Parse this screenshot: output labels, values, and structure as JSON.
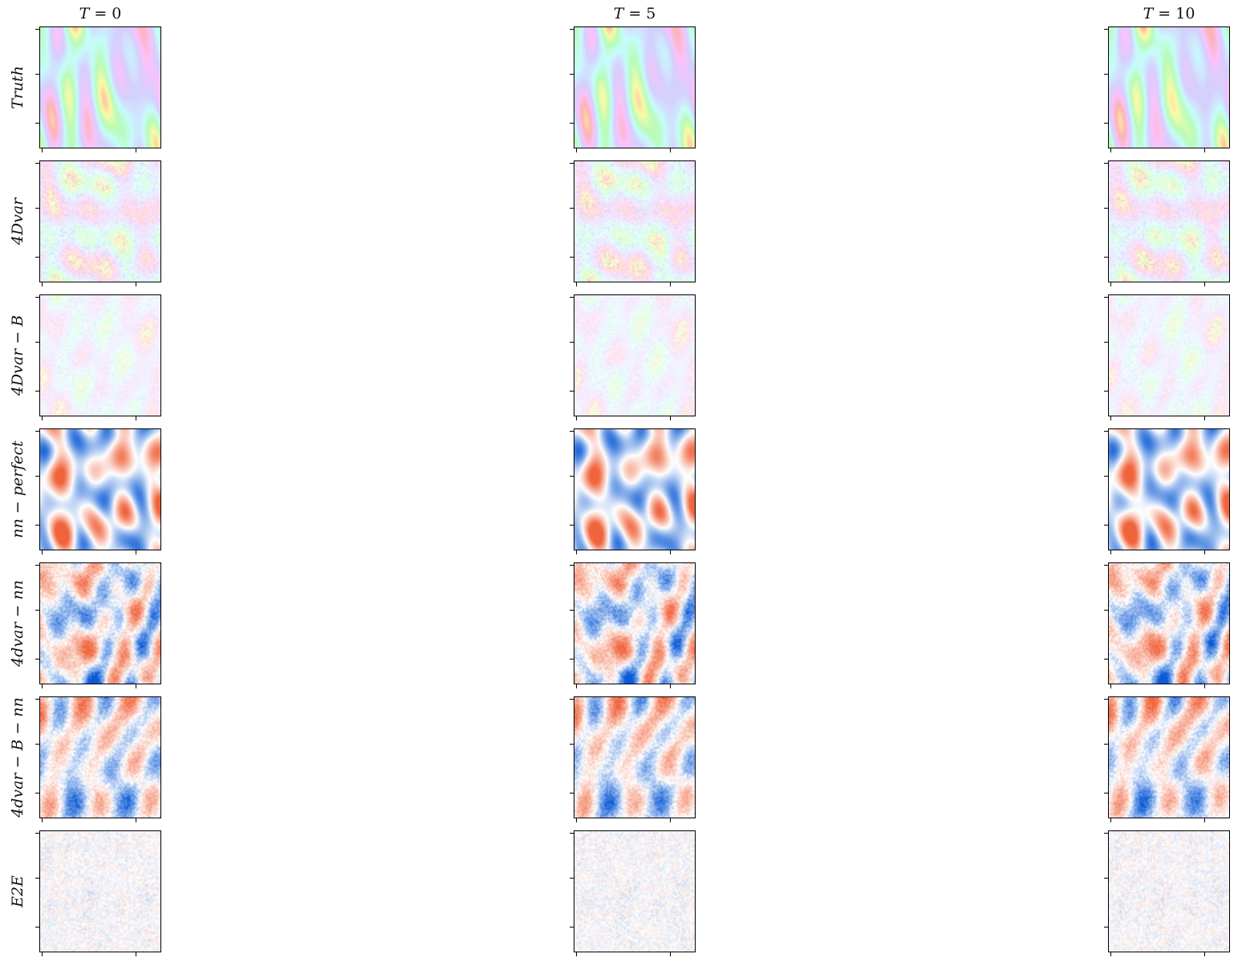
{
  "chart_data": {
    "type": "heatmap",
    "columns": [
      {
        "title_var": "T",
        "title_value": "0"
      },
      {
        "title_var": "T",
        "title_value": "5"
      },
      {
        "title_var": "T",
        "title_value": "10"
      }
    ],
    "rows": [
      {
        "label": "Truth",
        "style": "multicolor",
        "intensity": 0.25
      },
      {
        "label": "4Dvar",
        "style": "multicolor-noisy",
        "intensity": 0.18
      },
      {
        "label": "4Dvar − B",
        "style": "multicolor-noisy",
        "intensity": 0.12
      },
      {
        "label": "nn − perfect",
        "style": "diverging",
        "intensity": 0.9
      },
      {
        "label": "4dvar − nn",
        "style": "diverging-noisy",
        "intensity": 0.75
      },
      {
        "label": "4dvar − B − nn",
        "style": "diverging-noisy",
        "intensity": 0.7
      },
      {
        "label": "E2E",
        "style": "diverging-speckle",
        "intensity": 0.25
      }
    ],
    "colormap_diverging": {
      "negative": "#0a5ad6",
      "zero": "#ffffff",
      "positive": "#f0643c"
    },
    "grid": false,
    "tick_labels": false
  }
}
